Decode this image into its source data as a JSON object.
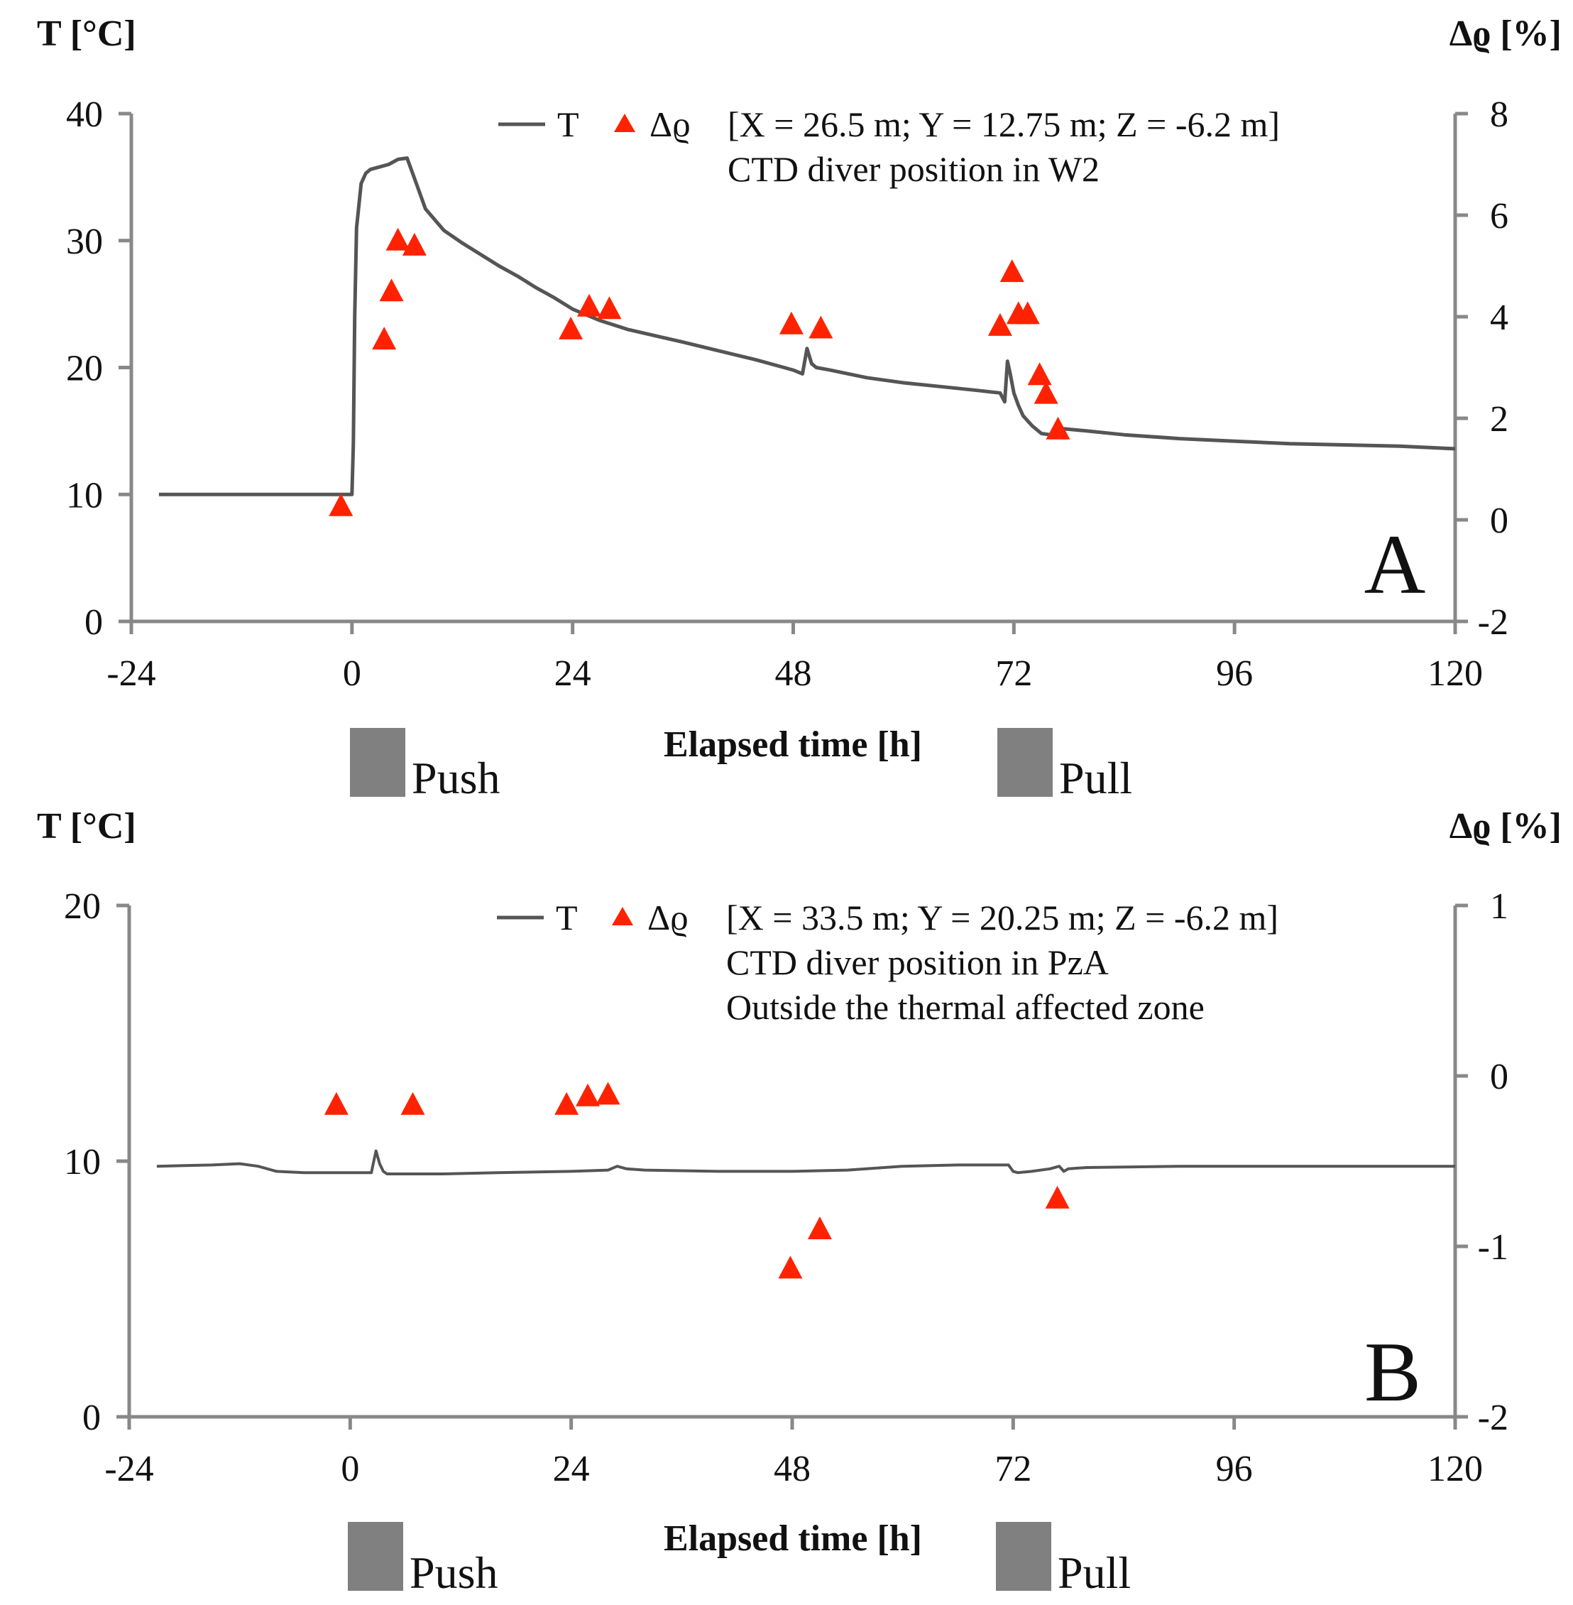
{
  "chart_data": [
    {
      "type": "line",
      "panel_label": "A",
      "title": "",
      "xlabel": "Elapsed time [h]",
      "ylabel": "T [°C]",
      "y2label": "Δϱ [%]",
      "xlim": [
        -24,
        120
      ],
      "ylim": [
        0,
        40
      ],
      "y2lim": [
        -2,
        8
      ],
      "xticks": [
        -24,
        0,
        24,
        48,
        72,
        96,
        120
      ],
      "yticks": [
        0,
        10,
        20,
        30,
        40
      ],
      "y2ticks": [
        -2,
        0,
        2,
        4,
        6,
        8
      ],
      "legend": {
        "line_label": "T",
        "marker_label": "Δϱ",
        "position": "top-center",
        "lines": [
          "[X = 26.5 m; Y = 12.75 m; Z = -6.2 m]",
          "CTD diver position in W2"
        ]
      },
      "series": [
        {
          "name": "T",
          "axis": "left",
          "color": "#555555",
          "x": [
            -21,
            -10,
            0,
            0.15,
            0.3,
            0.5,
            1,
            1.5,
            2,
            3,
            4,
            5,
            6,
            7,
            8,
            10,
            12,
            14,
            16,
            18,
            20,
            22,
            24,
            27,
            30,
            33,
            36,
            40,
            44,
            47,
            48,
            49,
            49.5,
            50,
            50.5,
            52,
            56,
            60,
            64,
            68,
            70.5,
            71,
            71.3,
            71.6,
            72,
            72.5,
            73,
            74,
            75,
            76,
            77,
            80,
            84,
            90,
            96,
            102,
            108,
            114,
            120
          ],
          "values": [
            10.0,
            10.0,
            10.0,
            14.0,
            24.0,
            31.0,
            34.5,
            35.3,
            35.6,
            35.8,
            36.0,
            36.4,
            36.5,
            34.5,
            32.5,
            30.8,
            29.8,
            28.9,
            28.0,
            27.2,
            26.3,
            25.5,
            24.6,
            23.7,
            23.0,
            22.5,
            22.0,
            21.3,
            20.6,
            20.0,
            19.8,
            19.5,
            21.5,
            20.3,
            20.0,
            19.8,
            19.2,
            18.8,
            18.5,
            18.2,
            18.0,
            17.3,
            20.5,
            19.5,
            18.0,
            17.0,
            16.2,
            15.4,
            14.8,
            14.7,
            15.2,
            15.0,
            14.7,
            14.4,
            14.2,
            14.0,
            13.9,
            13.8,
            13.6
          ]
        },
        {
          "name": "Δϱ",
          "type": "scatter",
          "axis": "right",
          "color": "#ff2200",
          "marker": "triangle",
          "x": [
            -1.2,
            3.5,
            4.3,
            5.0,
            6.8,
            23.8,
            25.8,
            28.0,
            47.8,
            51.0,
            70.5,
            71.8,
            72.5,
            73.5,
            74.8,
            75.5,
            76.8
          ],
          "values": [
            0.27,
            3.55,
            4.5,
            5.5,
            5.4,
            3.75,
            4.2,
            4.15,
            3.85,
            3.77,
            3.82,
            4.88,
            4.05,
            4.05,
            2.85,
            2.48,
            1.78
          ]
        }
      ]
    },
    {
      "type": "line",
      "panel_label": "B",
      "title": "",
      "xlabel": "Elapsed time [h]",
      "ylabel": "T [°C]",
      "y2label": "Δϱ [%]",
      "xlim": [
        -24,
        120
      ],
      "ylim": [
        0,
        20
      ],
      "y2lim": [
        -2,
        1
      ],
      "xticks": [
        -24,
        0,
        24,
        48,
        72,
        96,
        120
      ],
      "yticks": [
        0,
        10,
        20
      ],
      "y2ticks": [
        -2,
        -1,
        0,
        1
      ],
      "legend": {
        "line_label": "T",
        "marker_label": "Δϱ",
        "position": "top-center",
        "lines": [
          "[X = 33.5 m; Y = 20.25 m; Z = -6.2 m]",
          "CTD diver position in PzA",
          "Outside the thermal affected zone"
        ]
      },
      "series": [
        {
          "name": "T",
          "axis": "left",
          "color": "#555555",
          "x": [
            -21,
            -15,
            -12,
            -10,
            -8,
            -5,
            0,
            2.3,
            2.5,
            2.8,
            3.2,
            3.6,
            4,
            6,
            10,
            16,
            24,
            28,
            29,
            30,
            32,
            40,
            48,
            54,
            60,
            66,
            71.5,
            72,
            72.5,
            74,
            76,
            77,
            77.5,
            78,
            80,
            90,
            100,
            110,
            120
          ],
          "values": [
            9.8,
            9.85,
            9.9,
            9.8,
            9.6,
            9.55,
            9.55,
            9.55,
            9.9,
            10.4,
            9.9,
            9.6,
            9.5,
            9.5,
            9.5,
            9.55,
            9.6,
            9.65,
            9.8,
            9.7,
            9.65,
            9.6,
            9.6,
            9.65,
            9.8,
            9.85,
            9.85,
            9.6,
            9.55,
            9.6,
            9.7,
            9.8,
            9.6,
            9.7,
            9.75,
            9.8,
            9.8,
            9.8,
            9.8
          ]
        },
        {
          "name": "Δϱ",
          "type": "scatter",
          "axis": "right",
          "color": "#ff2200",
          "marker": "triangle",
          "x": [
            -1.5,
            6.8,
            23.5,
            25.8,
            28.0,
            47.8,
            51.0,
            76.8
          ],
          "values": [
            -0.17,
            -0.17,
            -0.17,
            -0.12,
            -0.11,
            -1.13,
            -0.9,
            -0.72
          ]
        }
      ]
    }
  ],
  "activities": [
    {
      "label": "Push",
      "start": 0,
      "end": 6
    },
    {
      "label": "Pull",
      "start": 70.5,
      "end": 76.5
    }
  ],
  "panel_letters": [
    "A",
    "B"
  ]
}
